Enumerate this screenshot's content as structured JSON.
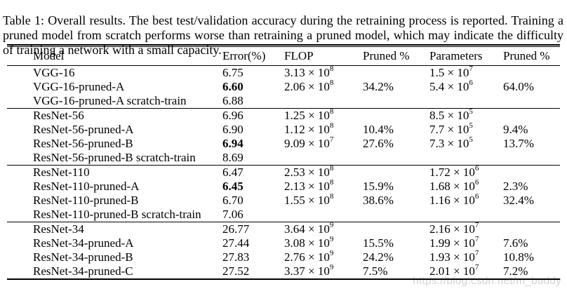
{
  "caption": "Table 1: Overall results. The best test/validation accuracy during the retraining process is reported. Training a pruned model from scratch performs worse than retraining a pruned model, which may indicate the difficulty of training a network with a small capacity.",
  "watermark": "https://blog.csdn.net/m_buddy",
  "colors": {
    "text": "#000000",
    "rule": "#000000",
    "watermark": "#d2d2d2",
    "background": "#ffffff"
  },
  "table": {
    "headers": [
      "Model",
      "Error(%)",
      "FLOP",
      "Pruned %",
      "Parameters",
      "Pruned %"
    ],
    "times_symbol": "×",
    "groups": [
      {
        "rows": [
          {
            "model": "VGG-16",
            "error": "6.75",
            "bold": false,
            "flop": {
              "mant": "3.13",
              "exp": "8"
            },
            "flop_pruned": "",
            "params": {
              "mant": "1.5",
              "exp": "7"
            },
            "params_pruned": ""
          },
          {
            "model": "VGG-16-pruned-A",
            "error": "6.60",
            "bold": true,
            "flop": {
              "mant": "2.06",
              "exp": "8"
            },
            "flop_pruned": "34.2%",
            "params": {
              "mant": "5.4",
              "exp": "6"
            },
            "params_pruned": "64.0%"
          },
          {
            "model": "VGG-16-pruned-A scratch-train",
            "error": "6.88",
            "bold": false,
            "flop": null,
            "flop_pruned": "",
            "params": null,
            "params_pruned": ""
          }
        ]
      },
      {
        "rows": [
          {
            "model": "ResNet-56",
            "error": "6.96",
            "bold": false,
            "flop": {
              "mant": "1.25",
              "exp": "8"
            },
            "flop_pruned": "",
            "params": {
              "mant": "8.5",
              "exp": "5"
            },
            "params_pruned": ""
          },
          {
            "model": "ResNet-56-pruned-A",
            "error": "6.90",
            "bold": false,
            "flop": {
              "mant": "1.12",
              "exp": "8"
            },
            "flop_pruned": "10.4%",
            "params": {
              "mant": "7.7",
              "exp": "5"
            },
            "params_pruned": "9.4%"
          },
          {
            "model": "ResNet-56-pruned-B",
            "error": "6.94",
            "bold": true,
            "flop": {
              "mant": "9.09",
              "exp": "7"
            },
            "flop_pruned": "27.6%",
            "params": {
              "mant": "7.3",
              "exp": "5"
            },
            "params_pruned": "13.7%"
          },
          {
            "model": "ResNet-56-pruned-B scratch-train",
            "error": "8.69",
            "bold": false,
            "flop": null,
            "flop_pruned": "",
            "params": null,
            "params_pruned": ""
          }
        ]
      },
      {
        "rows": [
          {
            "model": "ResNet-110",
            "error": "6.47",
            "bold": false,
            "flop": {
              "mant": "2.53",
              "exp": "8"
            },
            "flop_pruned": "",
            "params": {
              "mant": "1.72",
              "exp": "6"
            },
            "params_pruned": ""
          },
          {
            "model": "ResNet-110-pruned-A",
            "error": "6.45",
            "bold": true,
            "flop": {
              "mant": "2.13",
              "exp": "8"
            },
            "flop_pruned": "15.9%",
            "params": {
              "mant": "1.68",
              "exp": "6"
            },
            "params_pruned": "2.3%"
          },
          {
            "model": "ResNet-110-pruned-B",
            "error": "6.70",
            "bold": false,
            "flop": {
              "mant": "1.55",
              "exp": "8"
            },
            "flop_pruned": "38.6%",
            "params": {
              "mant": "1.16",
              "exp": "6"
            },
            "params_pruned": "32.4%"
          },
          {
            "model": "ResNet-110-pruned-B scratch-train",
            "error": "7.06",
            "bold": false,
            "flop": null,
            "flop_pruned": "",
            "params": null,
            "params_pruned": ""
          }
        ]
      },
      {
        "rows": [
          {
            "model": "ResNet-34",
            "error": "26.77",
            "bold": false,
            "flop": {
              "mant": "3.64",
              "exp": "9"
            },
            "flop_pruned": "",
            "params": {
              "mant": "2.16",
              "exp": "7"
            },
            "params_pruned": ""
          },
          {
            "model": "ResNet-34-pruned-A",
            "error": "27.44",
            "bold": false,
            "flop": {
              "mant": "3.08",
              "exp": "9"
            },
            "flop_pruned": "15.5%",
            "params": {
              "mant": "1.99",
              "exp": "7"
            },
            "params_pruned": "7.6%"
          },
          {
            "model": "ResNet-34-pruned-B",
            "error": "27.83",
            "bold": false,
            "flop": {
              "mant": "2.76",
              "exp": "9"
            },
            "flop_pruned": "24.2%",
            "params": {
              "mant": "1.93",
              "exp": "7"
            },
            "params_pruned": "10.8%"
          },
          {
            "model": "ResNet-34-pruned-C",
            "error": "27.52",
            "bold": false,
            "flop": {
              "mant": "3.37",
              "exp": "9"
            },
            "flop_pruned": "7.5%",
            "params": {
              "mant": "2.01",
              "exp": "7"
            },
            "params_pruned": "7.2%"
          }
        ]
      }
    ]
  }
}
